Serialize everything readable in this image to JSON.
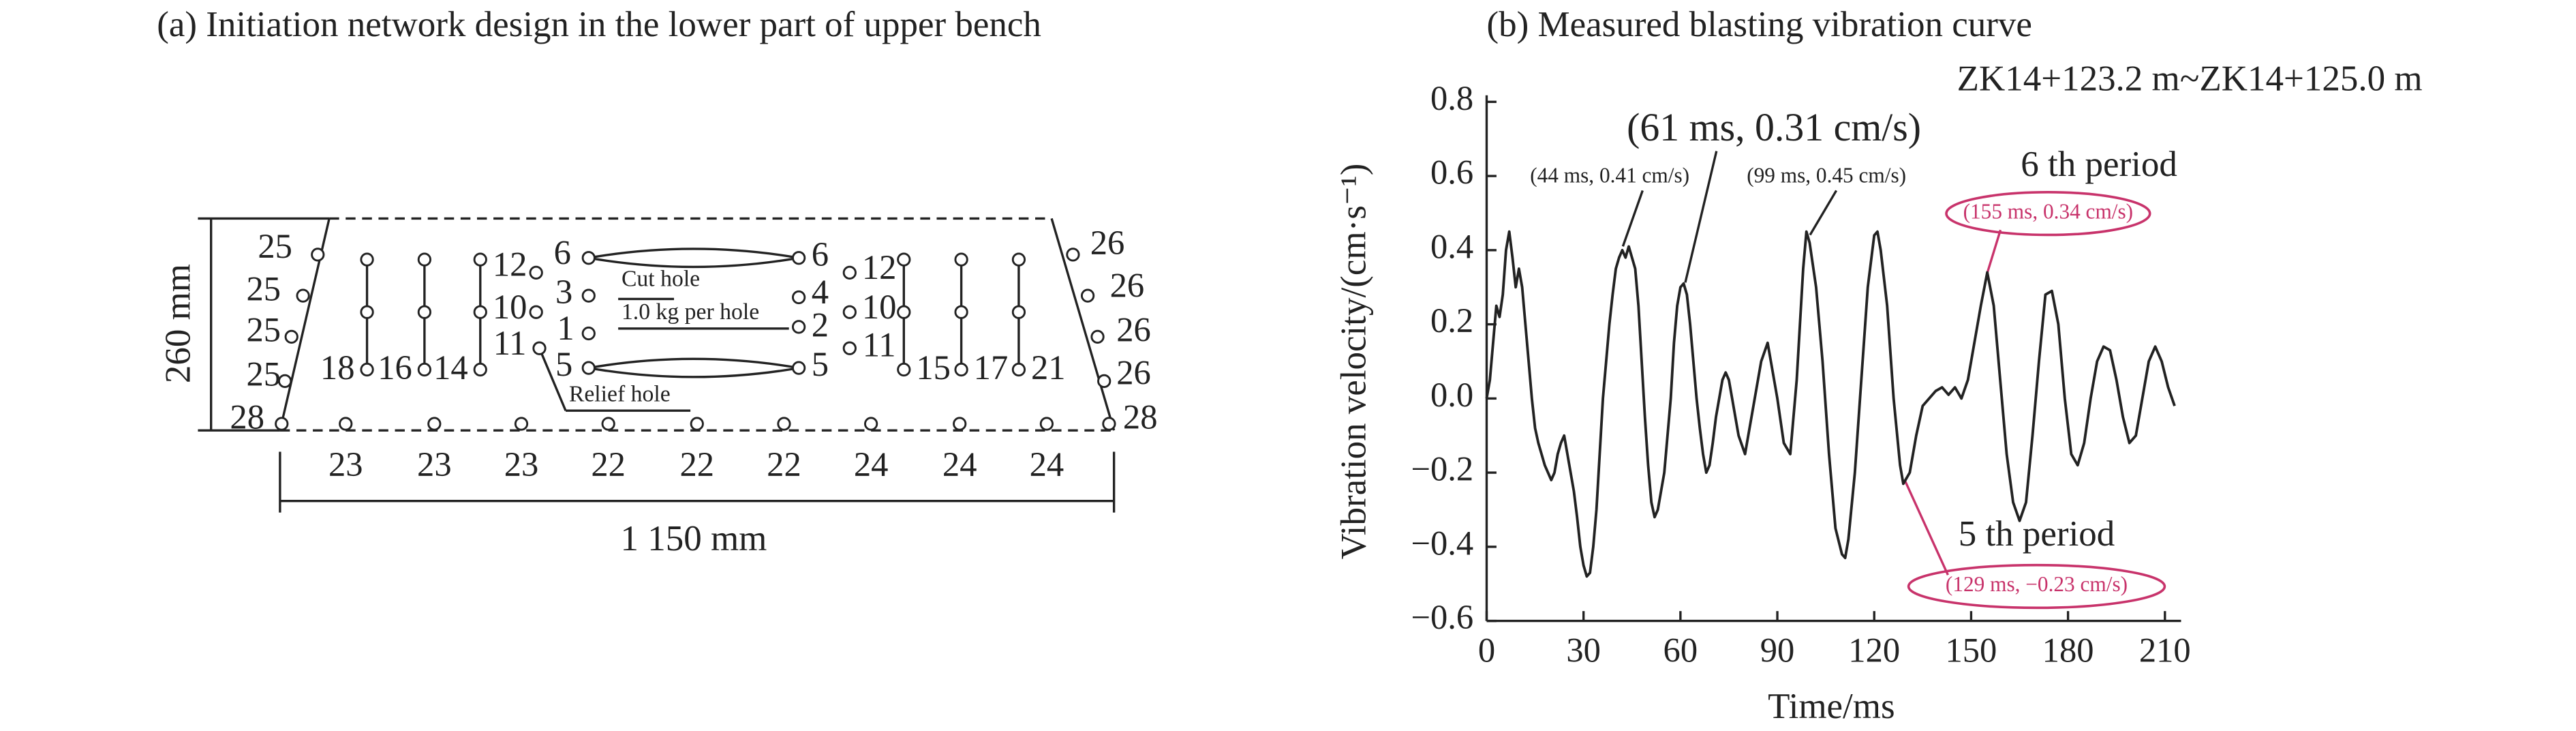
{
  "diagram": {
    "title": "(a) Initiation network design in the lower part of upper bench",
    "height_label": "260 mm",
    "width_label": "1 150 mm",
    "hole_labels": [
      "25",
      "25",
      "25",
      "25",
      "28",
      "26",
      "26",
      "26",
      "26",
      "28",
      "18",
      "16",
      "14",
      "12",
      "10",
      "11",
      "6",
      "3",
      "1",
      "5",
      "6",
      "4",
      "2",
      "5",
      "12",
      "10",
      "11",
      "15",
      "17",
      "21"
    ],
    "bottom_labels": [
      "23",
      "23",
      "23",
      "22",
      "22",
      "22",
      "24",
      "24",
      "24"
    ],
    "annotations": [
      "Cut hole",
      "1.0 kg per hole",
      "Relief hole"
    ]
  },
  "chart_data": {
    "type": "line",
    "title": "(b) Measured blasting vibration curve",
    "subtitle": "ZK14+123.2 m~ZK14+125.0 m",
    "x_label": "Time/ms",
    "y_label": "Vibration velocity/(cm·s⁻¹)",
    "x": [
      0,
      1,
      2,
      3,
      4,
      5,
      6,
      7,
      8,
      9,
      10,
      11,
      12,
      13,
      14,
      15,
      16,
      17,
      18,
      19,
      20,
      21,
      22,
      23,
      24,
      25,
      26,
      27,
      28,
      29,
      30,
      31,
      32,
      33,
      34,
      35,
      36,
      37,
      38,
      39,
      40,
      41,
      42,
      43,
      44,
      45,
      46,
      47,
      48,
      49,
      50,
      51,
      52,
      53,
      54,
      55,
      56,
      57,
      58,
      59,
      60,
      61,
      62,
      63,
      64,
      65,
      66,
      67,
      68,
      69,
      70,
      71,
      72,
      73,
      74,
      75,
      76,
      78,
      80,
      81,
      83,
      85,
      87,
      88,
      90,
      92,
      94,
      96,
      98,
      99,
      100,
      102,
      104,
      106,
      108,
      110,
      111,
      112,
      114,
      116,
      118,
      120,
      121,
      122,
      124,
      126,
      128,
      129,
      131,
      133,
      135,
      137,
      139,
      141,
      143,
      145,
      147,
      149,
      151,
      153,
      155,
      157,
      159,
      161,
      163,
      165,
      167,
      169,
      171,
      173,
      175,
      177,
      179,
      181,
      183,
      185,
      187,
      189,
      191,
      193,
      195,
      197,
      199,
      201,
      203,
      205,
      207,
      209,
      211,
      213
    ],
    "series": [
      {
        "color": "#222222",
        "values": [
          0.0,
          0.05,
          0.15,
          0.25,
          0.22,
          0.28,
          0.4,
          0.45,
          0.38,
          0.3,
          0.35,
          0.3,
          0.2,
          0.1,
          0.0,
          -0.08,
          -0.12,
          -0.15,
          -0.18,
          -0.2,
          -0.22,
          -0.2,
          -0.15,
          -0.12,
          -0.1,
          -0.15,
          -0.2,
          -0.25,
          -0.32,
          -0.4,
          -0.45,
          -0.48,
          -0.47,
          -0.4,
          -0.3,
          -0.15,
          0.0,
          0.1,
          0.2,
          0.28,
          0.35,
          0.38,
          0.4,
          0.38,
          0.41,
          0.38,
          0.35,
          0.25,
          0.1,
          -0.05,
          -0.18,
          -0.28,
          -0.32,
          -0.3,
          -0.25,
          -0.2,
          -0.1,
          0.0,
          0.15,
          0.25,
          0.3,
          0.31,
          0.28,
          0.2,
          0.1,
          0.0,
          -0.08,
          -0.15,
          -0.2,
          -0.18,
          -0.12,
          -0.05,
          0.0,
          0.05,
          0.07,
          0.05,
          0.0,
          -0.1,
          -0.15,
          -0.1,
          0.0,
          0.1,
          0.15,
          0.1,
          0.0,
          -0.12,
          -0.15,
          0.05,
          0.35,
          0.45,
          0.42,
          0.3,
          0.1,
          -0.15,
          -0.35,
          -0.42,
          -0.43,
          -0.38,
          -0.2,
          0.05,
          0.3,
          0.44,
          0.45,
          0.4,
          0.25,
          0.0,
          -0.18,
          -0.23,
          -0.2,
          -0.1,
          -0.02,
          0.0,
          0.02,
          0.03,
          0.01,
          0.03,
          0.0,
          0.05,
          0.15,
          0.25,
          0.34,
          0.25,
          0.05,
          -0.15,
          -0.28,
          -0.33,
          -0.28,
          -0.1,
          0.1,
          0.28,
          0.29,
          0.2,
          0.0,
          -0.15,
          -0.18,
          -0.12,
          0.0,
          0.1,
          0.14,
          0.13,
          0.05,
          -0.05,
          -0.12,
          -0.1,
          0.0,
          0.1,
          0.14,
          0.1,
          0.03,
          -0.02
        ]
      }
    ],
    "xlim": [
      0,
      215
    ],
    "ylim": [
      -0.6,
      0.8
    ],
    "xticks": [
      0,
      30,
      60,
      90,
      120,
      150,
      180,
      210
    ],
    "yticks": [
      {
        "value": -0.6,
        "label": "−0.6"
      },
      {
        "value": -0.4,
        "label": "−0.4"
      },
      {
        "value": -0.2,
        "label": "−0.2"
      },
      {
        "value": 0,
        "label": "0.0"
      },
      0.2,
      0.4,
      0.6,
      0.8
    ],
    "annotations": [
      "(61 ms, 0.31 cm/s)",
      "(44 ms, 0.41 cm/s)",
      "(99 ms, 0.45 cm/s)",
      "6 th period",
      "(155 ms, 0.34 cm/s)",
      "5 th period",
      "(129 ms, −0.23 cm/s)"
    ]
  }
}
